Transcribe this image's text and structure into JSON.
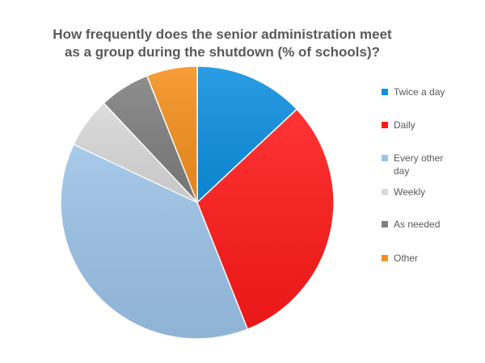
{
  "chart_data": {
    "type": "pie",
    "title": "How frequently does the senior administration meet as a group during the shutdown (% of schools)?",
    "categories": [
      "Twice a day",
      "Daily",
      "Every other day",
      "Weekly",
      "As needed",
      "Other"
    ],
    "values": [
      13,
      31,
      38,
      6,
      6,
      6
    ],
    "colors": [
      "#0E90E0",
      "#FF1A1A",
      "#9CC3E8",
      "#D9D9D9",
      "#7F7F7F",
      "#F5901E"
    ],
    "legend_position": "right",
    "start_angle": "top, clockwise"
  }
}
